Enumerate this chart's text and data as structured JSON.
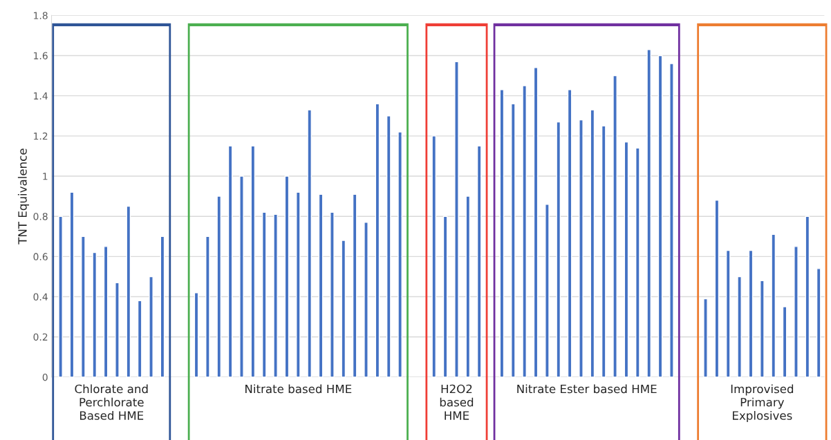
{
  "chart_data": {
    "type": "bar",
    "ylabel": "TNT Equivalence",
    "categories": [
      null,
      null,
      null,
      null,
      null,
      null,
      null,
      null,
      null,
      null,
      null,
      null,
      null,
      null,
      null,
      null,
      null,
      null,
      null,
      null,
      null,
      null,
      null,
      null,
      null,
      null,
      null,
      null,
      null,
      null,
      null,
      null,
      null,
      null,
      null,
      null,
      null,
      null,
      null,
      null,
      null,
      null,
      null,
      null,
      null,
      null,
      null,
      null,
      null,
      null,
      null,
      null,
      null,
      null,
      null,
      null,
      null,
      null,
      null,
      null,
      null,
      null,
      null,
      null,
      null,
      null,
      null,
      null
    ],
    "series": [
      {
        "color": "#4472c4",
        "values": [
          0.8,
          0.92,
          0.7,
          0.62,
          0.65,
          0.47,
          0.85,
          0.38,
          0.5,
          0.7,
          null,
          null,
          null,
          null,
          null,
          null,
          null,
          null,
          null,
          null,
          null,
          null,
          null,
          null,
          null,
          null,
          null,
          null,
          null,
          null,
          null,
          null,
          null,
          null,
          null,
          null,
          null,
          null,
          null,
          null,
          null,
          null,
          null,
          null,
          null,
          null,
          null,
          null,
          null,
          null,
          null,
          null,
          null,
          null,
          null,
          null,
          null,
          null,
          null,
          null,
          null,
          null,
          null,
          null,
          null,
          null,
          null,
          null
        ]
      },
      {
        "color": "#4472c4",
        "values": [
          null,
          null,
          null,
          null,
          null,
          null,
          null,
          null,
          null,
          null,
          null,
          null,
          0.42,
          0.7,
          0.9,
          1.15,
          1.0,
          1.15,
          0.82,
          0.81,
          1.0,
          0.92,
          1.33,
          0.91,
          0.82,
          0.68,
          0.91,
          0.77,
          1.36,
          1.3,
          1.22,
          null,
          null,
          null,
          null,
          null,
          null,
          null,
          null,
          null,
          null,
          null,
          null,
          null,
          null,
          null,
          null,
          null,
          null,
          null,
          null,
          null,
          null,
          null,
          null,
          null,
          null,
          null,
          null,
          null,
          null,
          null,
          null,
          null,
          null,
          null,
          null,
          null
        ]
      },
      {
        "color": "#4472c4",
        "values": [
          null,
          null,
          null,
          null,
          null,
          null,
          null,
          null,
          null,
          null,
          null,
          null,
          null,
          null,
          null,
          null,
          null,
          null,
          null,
          null,
          null,
          null,
          null,
          null,
          null,
          null,
          null,
          null,
          null,
          null,
          null,
          null,
          null,
          1.2,
          0.8,
          1.57,
          0.9,
          1.15,
          null,
          null,
          null,
          null,
          null,
          null,
          null,
          null,
          null,
          null,
          null,
          null,
          null,
          null,
          null,
          null,
          null,
          null,
          null,
          null,
          null,
          null,
          null,
          null,
          null,
          null,
          null,
          null,
          null,
          null
        ]
      },
      {
        "color": "#4472c4",
        "values": [
          null,
          null,
          null,
          null,
          null,
          null,
          null,
          null,
          null,
          null,
          null,
          null,
          null,
          null,
          null,
          null,
          null,
          null,
          null,
          null,
          null,
          null,
          null,
          null,
          null,
          null,
          null,
          null,
          null,
          null,
          null,
          null,
          null,
          null,
          null,
          null,
          null,
          null,
          null,
          1.43,
          1.36,
          1.45,
          1.54,
          0.86,
          1.27,
          1.43,
          1.28,
          1.33,
          1.25,
          1.5,
          1.17,
          1.14,
          1.63,
          1.6,
          1.56,
          null,
          null,
          null,
          null,
          null,
          null,
          null,
          null,
          null,
          null,
          null,
          null,
          null
        ]
      },
      {
        "color": "#4472c4",
        "values": [
          null,
          null,
          null,
          null,
          null,
          null,
          null,
          null,
          null,
          null,
          null,
          null,
          null,
          null,
          null,
          null,
          null,
          null,
          null,
          null,
          null,
          null,
          null,
          null,
          null,
          null,
          null,
          null,
          null,
          null,
          null,
          null,
          null,
          null,
          null,
          null,
          null,
          null,
          null,
          null,
          null,
          null,
          null,
          null,
          null,
          null,
          null,
          null,
          null,
          null,
          null,
          null,
          null,
          null,
          null,
          null,
          null,
          0.39,
          0.88,
          0.63,
          0.5,
          0.63,
          0.48,
          0.71,
          0.35,
          0.65,
          0.8,
          0.54
        ]
      }
    ],
    "ylim": [
      0,
      1.8
    ],
    "yticks": [
      0,
      0.2,
      0.4,
      0.6,
      0.8,
      1,
      1.2,
      1.4,
      1.6,
      1.8
    ],
    "grid": "y",
    "annotations": [
      "Chlorate and\nPerchlorate\nBased HME",
      "Nitrate based HME",
      "H2O2\nbased\nHME",
      "Nitrate Ester based HME",
      "Improvised\nPrimary\nExplosives"
    ]
  }
}
